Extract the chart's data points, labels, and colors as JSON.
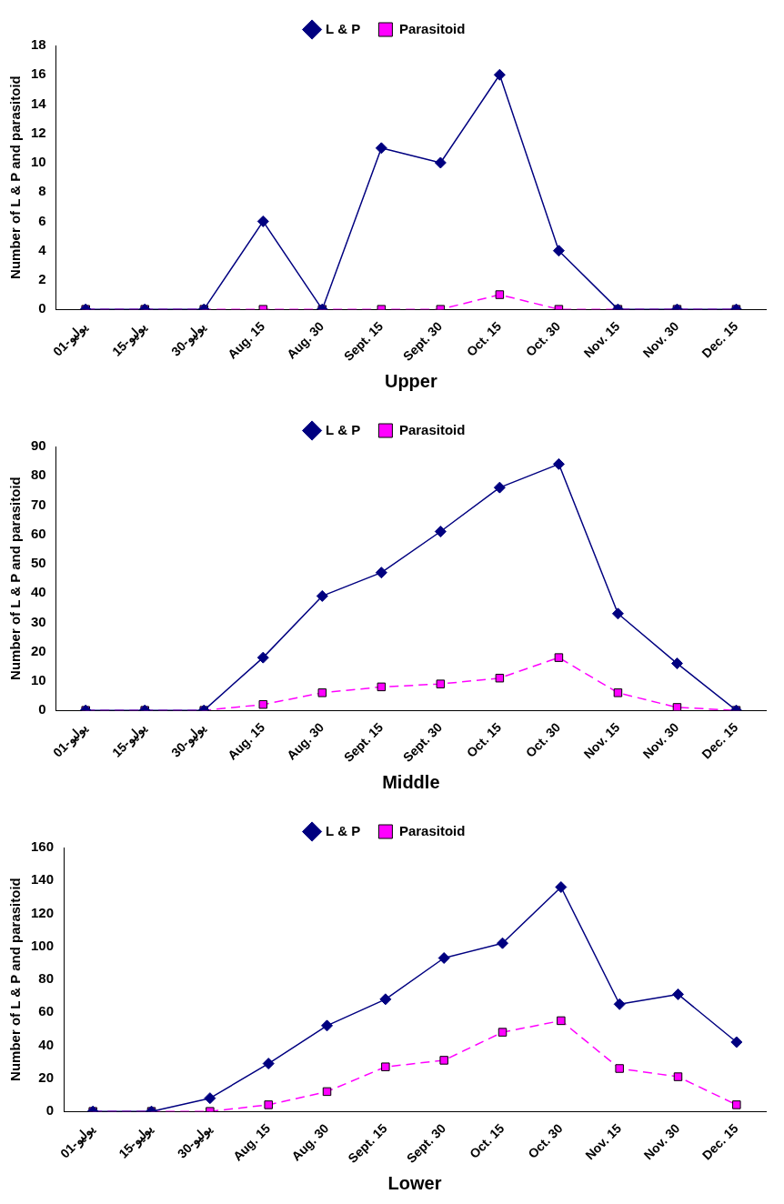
{
  "chart_data": [
    {
      "type": "line",
      "xlabel": "Upper",
      "ylabel": "Number of L & P and parasitoid",
      "categories": [
        "01-يوليو",
        "15-يوليو",
        "30-يوليو",
        "Aug. 15",
        "Aug. 30",
        "Sept. 15",
        "Sept. 30",
        "Oct. 15",
        "Oct. 30",
        "Nov. 15",
        "Nov. 30",
        "Dec. 15"
      ],
      "series": [
        {
          "name": "L & P",
          "color": "#000080",
          "marker": "diamond",
          "line_style": "solid",
          "values": [
            0,
            0,
            0,
            6,
            0,
            11,
            10,
            16,
            4,
            0,
            0,
            0
          ]
        },
        {
          "name": "Parasitoid",
          "color": "#ff00ff",
          "marker": "square",
          "line_style": "dashed",
          "values": [
            0,
            0,
            0,
            0,
            0,
            0,
            0,
            1,
            0,
            0,
            0,
            0
          ]
        }
      ],
      "ylim": [
        0,
        18
      ],
      "yticks": [
        0,
        2,
        4,
        6,
        8,
        10,
        12,
        14,
        16,
        18
      ],
      "grid": false,
      "legend": "top"
    },
    {
      "type": "line",
      "xlabel": "Middle",
      "ylabel": "Number of L & P and parasitoid",
      "categories": [
        "01-يوليو",
        "15-يوليو",
        "30-يوليو",
        "Aug. 15",
        "Aug. 30",
        "Sept. 15",
        "Sept. 30",
        "Oct. 15",
        "Oct. 30",
        "Nov. 15",
        "Nov. 30",
        "Dec. 15"
      ],
      "series": [
        {
          "name": "L & P",
          "color": "#000080",
          "marker": "diamond",
          "line_style": "solid",
          "values": [
            0,
            0,
            0,
            18,
            39,
            47,
            61,
            76,
            84,
            33,
            16,
            0
          ]
        },
        {
          "name": "Parasitoid",
          "color": "#ff00ff",
          "marker": "square",
          "line_style": "dashed",
          "values": [
            0,
            0,
            0,
            2,
            6,
            8,
            9,
            11,
            18,
            6,
            1,
            0
          ]
        }
      ],
      "ylim": [
        0,
        90
      ],
      "yticks": [
        0,
        10,
        20,
        30,
        40,
        50,
        60,
        70,
        80,
        90
      ],
      "grid": false,
      "legend": "top"
    },
    {
      "type": "line",
      "xlabel": "Lower",
      "ylabel": "Number of L & P and parasitoid",
      "categories": [
        "01-يوليو",
        "15-يوليو",
        "30-يوليو",
        "Aug. 15",
        "Aug. 30",
        "Sept. 15",
        "Sept. 30",
        "Oct. 15",
        "Oct. 30",
        "Nov. 15",
        "Nov. 30",
        "Dec. 15"
      ],
      "series": [
        {
          "name": "L & P",
          "color": "#000080",
          "marker": "diamond",
          "line_style": "solid",
          "values": [
            0,
            0,
            8,
            29,
            52,
            68,
            93,
            102,
            136,
            65,
            71,
            42
          ]
        },
        {
          "name": "Parasitoid",
          "color": "#ff00ff",
          "marker": "square",
          "line_style": "dashed",
          "values": [
            0,
            0,
            0,
            4,
            12,
            27,
            31,
            48,
            55,
            26,
            21,
            4
          ]
        }
      ],
      "ylim": [
        0,
        160
      ],
      "yticks": [
        0,
        20,
        40,
        60,
        80,
        100,
        120,
        140,
        160
      ],
      "grid": false,
      "legend": "top"
    }
  ]
}
